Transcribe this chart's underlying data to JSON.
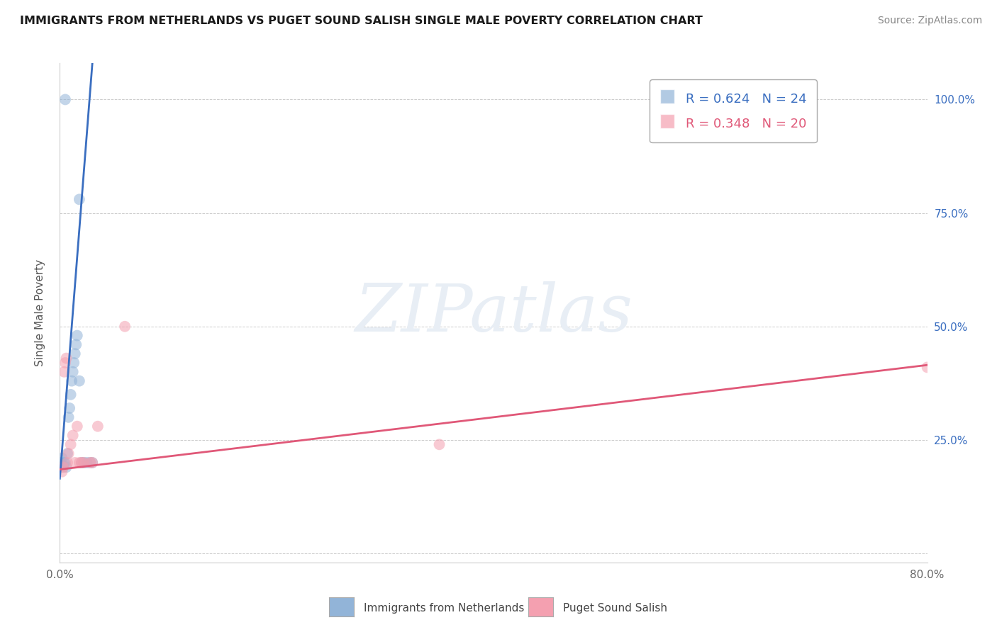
{
  "title": "IMMIGRANTS FROM NETHERLANDS VS PUGET SOUND SALISH SINGLE MALE POVERTY CORRELATION CHART",
  "source": "Source: ZipAtlas.com",
  "ylabel": "Single Male Poverty",
  "xlim": [
    0.0,
    0.8
  ],
  "ylim": [
    -0.02,
    1.08
  ],
  "blue_color": "#92B4D8",
  "pink_color": "#F4A0B0",
  "blue_line_color": "#3A6EC0",
  "pink_line_color": "#E05878",
  "blue_scatter_x": [
    0.001,
    0.002,
    0.003,
    0.004,
    0.005,
    0.006,
    0.007,
    0.008,
    0.009,
    0.01,
    0.011,
    0.012,
    0.013,
    0.014,
    0.015,
    0.016,
    0.018,
    0.02,
    0.022,
    0.025,
    0.028,
    0.03,
    0.018,
    0.005
  ],
  "blue_scatter_y": [
    0.2,
    0.21,
    0.19,
    0.2,
    0.2,
    0.19,
    0.22,
    0.3,
    0.32,
    0.35,
    0.38,
    0.4,
    0.42,
    0.44,
    0.46,
    0.48,
    0.38,
    0.2,
    0.2,
    0.2,
    0.2,
    0.2,
    0.78,
    1.0
  ],
  "pink_scatter_x": [
    0.002,
    0.003,
    0.004,
    0.005,
    0.006,
    0.007,
    0.008,
    0.01,
    0.012,
    0.014,
    0.016,
    0.018,
    0.02,
    0.022,
    0.028,
    0.03,
    0.035,
    0.06,
    0.35,
    0.8
  ],
  "pink_scatter_y": [
    0.18,
    0.19,
    0.4,
    0.42,
    0.43,
    0.2,
    0.22,
    0.24,
    0.26,
    0.2,
    0.28,
    0.2,
    0.2,
    0.2,
    0.2,
    0.2,
    0.28,
    0.5,
    0.24,
    0.41
  ],
  "blue_trend_x": [
    0.0,
    0.03
  ],
  "blue_trend_y": [
    0.165,
    1.08
  ],
  "pink_trend_x": [
    0.0,
    0.8
  ],
  "pink_trend_y": [
    0.185,
    0.415
  ],
  "legend_blue_label": "R = 0.624   N = 24",
  "legend_pink_label": "R = 0.348   N = 20",
  "bottom_label_blue": "Immigrants from Netherlands",
  "bottom_label_pink": "Puget Sound Salish",
  "watermark": "ZIPatlas"
}
